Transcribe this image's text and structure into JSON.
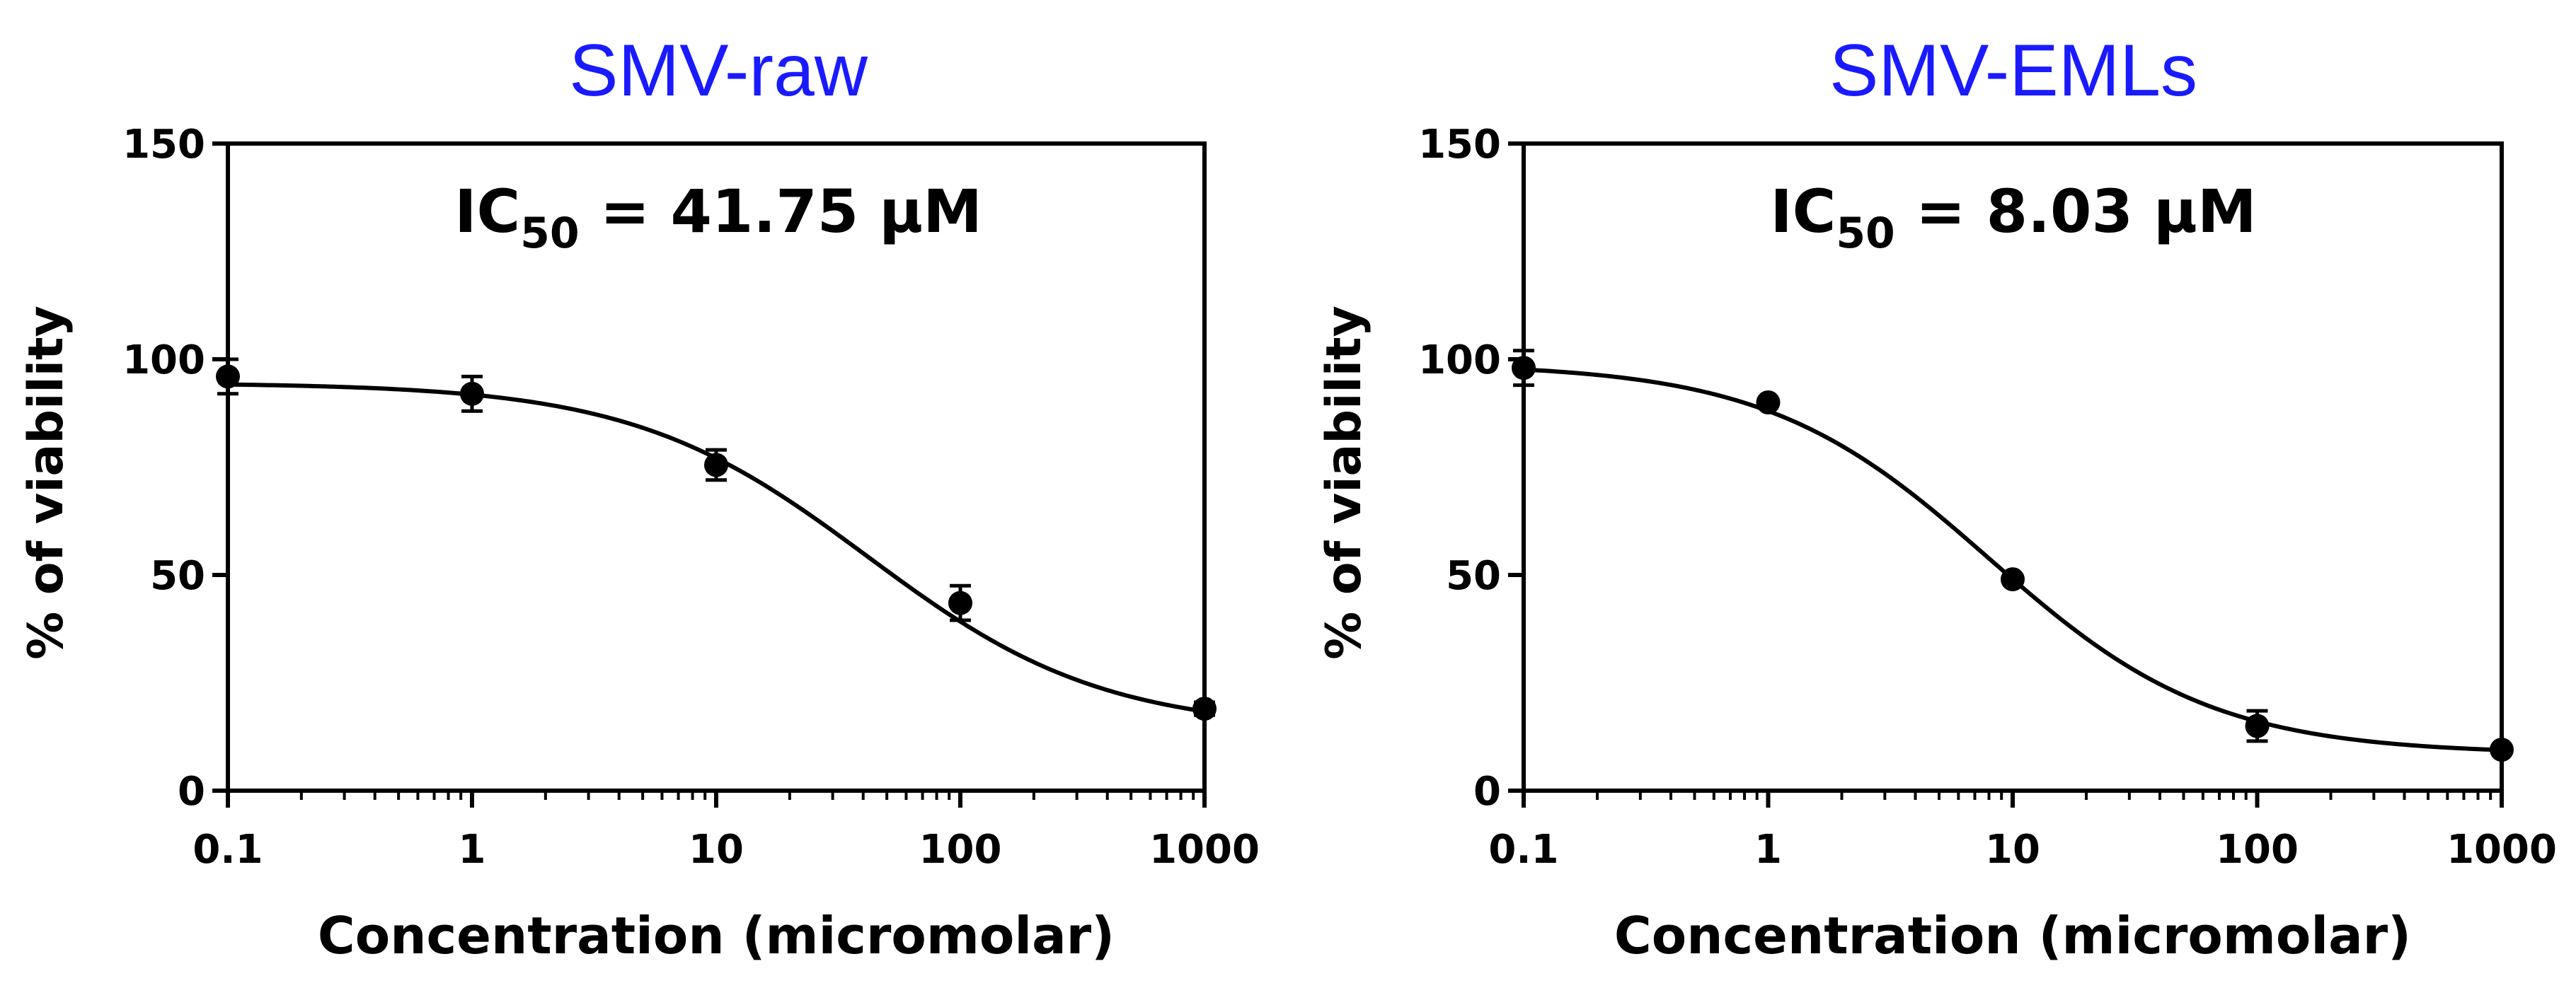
{
  "chart_data": [
    {
      "type": "scatter",
      "title": "SMV-raw",
      "title_color": "#1a1aff",
      "xlabel": "Concentration (micromolar)",
      "ylabel": "% of viability",
      "xscale": "log",
      "xlim": [
        0.1,
        1000
      ],
      "ylim": [
        0,
        150
      ],
      "xticks": [
        "0.1",
        "1",
        "10",
        "100",
        "1000"
      ],
      "yticks": [
        "0",
        "50",
        "100",
        "150"
      ],
      "annotation": {
        "prefix": "IC",
        "subscript": "50",
        "suffix": " = 41.75 μM"
      },
      "series": [
        {
          "name": "SMV-raw",
          "x": [
            0.1,
            1,
            10,
            100,
            1000
          ],
          "y": [
            96,
            92,
            75.5,
            43.5,
            19
          ],
          "err": [
            4,
            4,
            3.5,
            4,
            1.5
          ]
        }
      ],
      "fit": {
        "model": "4PL",
        "top": 94.5,
        "bottom": 14,
        "ic50": 41.75,
        "hill": 0.9
      }
    },
    {
      "type": "scatter",
      "title": "SMV-EMLs",
      "title_color": "#1a1aff",
      "xlabel": "Concentration (micromolar)",
      "ylabel": "% of viability",
      "xscale": "log",
      "xlim": [
        0.1,
        1000
      ],
      "ylim": [
        0,
        150
      ],
      "xticks": [
        "0.1",
        "1",
        "10",
        "100",
        "1000"
      ],
      "yticks": [
        "0",
        "50",
        "100",
        "150"
      ],
      "annotation": {
        "prefix": "IC",
        "subscript": "50",
        "suffix": " = 8.03 μM"
      },
      "series": [
        {
          "name": "SMV-EMLs",
          "x": [
            0.1,
            1,
            10,
            100,
            1000
          ],
          "y": [
            98,
            90,
            49,
            15,
            9.5
          ],
          "err": [
            4,
            1,
            1,
            3.5,
            1
          ]
        }
      ],
      "fit": {
        "model": "4PL",
        "top": 99,
        "bottom": 8.5,
        "ic50": 8.03,
        "hill": 0.95
      }
    }
  ]
}
